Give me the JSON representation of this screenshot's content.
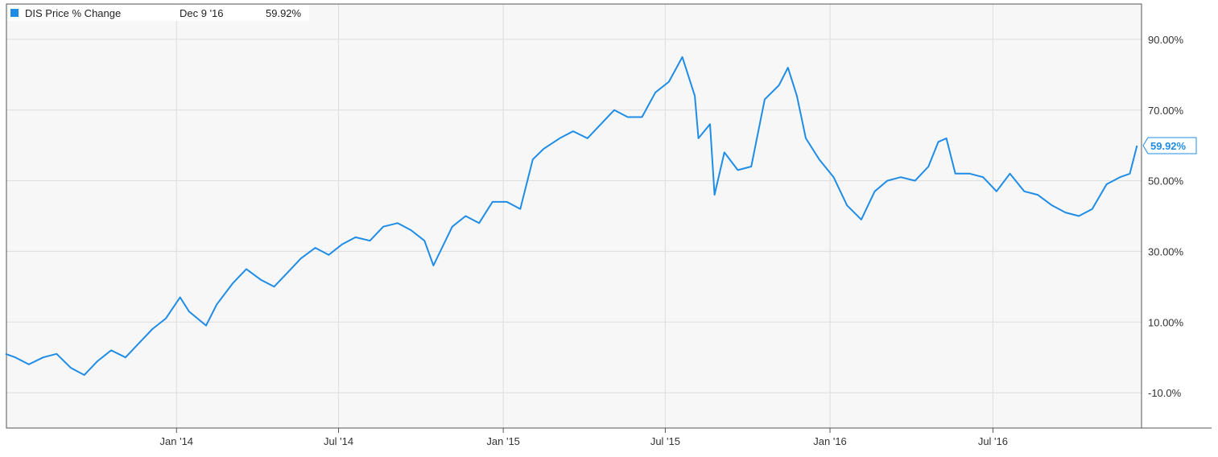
{
  "legend": {
    "series_label": "DIS Price % Change",
    "date": "Dec 9 '16",
    "value": "59.92%"
  },
  "chart_data": {
    "type": "line",
    "title": "",
    "xlabel": "",
    "ylabel": "",
    "x_ticks": [
      {
        "date": "2014-01-01",
        "label": "Jan '14"
      },
      {
        "date": "2014-07-01",
        "label": "Jul '14"
      },
      {
        "date": "2015-01-01",
        "label": "Jan '15"
      },
      {
        "date": "2015-07-01",
        "label": "Jul '15"
      },
      {
        "date": "2016-01-01",
        "label": "Jan '16"
      },
      {
        "date": "2016-07-01",
        "label": "Jul '16"
      }
    ],
    "y_ticks": [
      -10,
      10,
      30,
      50,
      70,
      90
    ],
    "y_tick_labels": [
      "-10.0%",
      "10.00%",
      "30.00%",
      "50.00%",
      "70.00%",
      "90.00%"
    ],
    "xlim": [
      "2013-06-25",
      "2016-12-14"
    ],
    "ylim": [
      -20,
      100
    ],
    "grid": true,
    "legend_position": "top-left",
    "last_value_label": "59.92%",
    "series": [
      {
        "name": "DIS Price % Change",
        "color": "#1f8ce6",
        "x": [
          "2013-06-24",
          "2013-07-05",
          "2013-07-20",
          "2013-08-05",
          "2013-08-20",
          "2013-09-05",
          "2013-09-20",
          "2013-10-05",
          "2013-10-20",
          "2013-11-05",
          "2013-11-20",
          "2013-12-05",
          "2013-12-20",
          "2014-01-05",
          "2014-01-15",
          "2014-02-03",
          "2014-02-15",
          "2014-03-05",
          "2014-03-20",
          "2014-04-05",
          "2014-04-20",
          "2014-05-05",
          "2014-05-20",
          "2014-06-05",
          "2014-06-20",
          "2014-07-05",
          "2014-07-20",
          "2014-08-05",
          "2014-08-20",
          "2014-09-05",
          "2014-09-20",
          "2014-10-05",
          "2014-10-15",
          "2014-11-05",
          "2014-11-20",
          "2014-12-05",
          "2014-12-20",
          "2015-01-05",
          "2015-01-20",
          "2015-02-03",
          "2015-02-15",
          "2015-03-05",
          "2015-03-20",
          "2015-04-05",
          "2015-04-20",
          "2015-05-05",
          "2015-05-20",
          "2015-06-05",
          "2015-06-20",
          "2015-07-05",
          "2015-07-20",
          "2015-08-03",
          "2015-08-07",
          "2015-08-20",
          "2015-08-25",
          "2015-09-05",
          "2015-09-20",
          "2015-10-05",
          "2015-10-20",
          "2015-11-05",
          "2015-11-15",
          "2015-11-25",
          "2015-12-05",
          "2015-12-20",
          "2016-01-05",
          "2016-01-20",
          "2016-02-05",
          "2016-02-20",
          "2016-03-05",
          "2016-03-20",
          "2016-04-05",
          "2016-04-20",
          "2016-05-01",
          "2016-05-10",
          "2016-05-20",
          "2016-06-05",
          "2016-06-20",
          "2016-07-05",
          "2016-07-20",
          "2016-08-05",
          "2016-08-20",
          "2016-09-05",
          "2016-09-20",
          "2016-10-05",
          "2016-10-20",
          "2016-11-05",
          "2016-11-20",
          "2016-12-01",
          "2016-12-09"
        ],
        "values": [
          1,
          0,
          -2,
          0,
          1,
          -3,
          -5,
          -1,
          2,
          0,
          4,
          8,
          11,
          17,
          13,
          9,
          15,
          21,
          25,
          22,
          20,
          24,
          28,
          31,
          29,
          32,
          34,
          33,
          37,
          38,
          36,
          33,
          26,
          37,
          40,
          38,
          44,
          44,
          42,
          56,
          59,
          62,
          64,
          62,
          66,
          70,
          68,
          68,
          75,
          78,
          85,
          74,
          62,
          66,
          46,
          58,
          53,
          54,
          73,
          77,
          82,
          74,
          62,
          56,
          51,
          43,
          39,
          47,
          50,
          51,
          50,
          54,
          61,
          62,
          52,
          52,
          51,
          47,
          52,
          47,
          46,
          43,
          41,
          40,
          42,
          49,
          51,
          52,
          59.92
        ]
      }
    ]
  }
}
